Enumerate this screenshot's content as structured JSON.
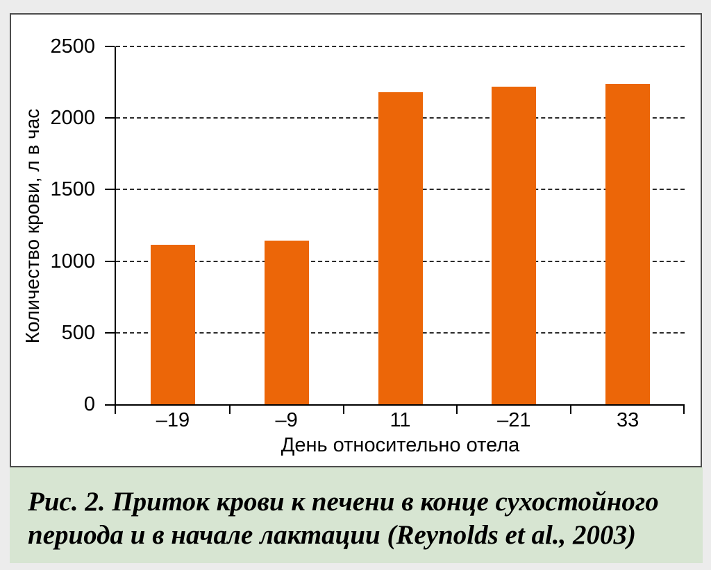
{
  "figure": {
    "caption": {
      "full": "Рис. 2. Приток крови к печени в конце сухостойного периода и в начале лактации (Reynolds et al., 2003)",
      "lines": [
        "Рис. 2. Приток крови к печени в конце сухостойного",
        "периода и в начале лактации (Reynolds et al., 2003)"
      ]
    }
  },
  "chart_data": {
    "type": "bar",
    "title": "",
    "xlabel": "День относительно отела",
    "ylabel": "Количество крови, л в час",
    "categories": [
      "–19",
      "–9",
      "11",
      "–21",
      "33"
    ],
    "values": [
      1115,
      1145,
      2180,
      2220,
      2240
    ],
    "ylim": [
      0,
      2500
    ],
    "yticks": [
      0,
      500,
      1000,
      1500,
      2000,
      2500
    ],
    "grid": "horizontal-dashed",
    "legend": "none",
    "bar_color": "#ec6608"
  },
  "colors": {
    "page_bg": "#ececec",
    "panel_bg": "#ffffff",
    "panel_border": "#4d4d4d",
    "caption_bg": "#d7e5d2",
    "grid_color": "#2a2a2a",
    "text": "#000000"
  }
}
